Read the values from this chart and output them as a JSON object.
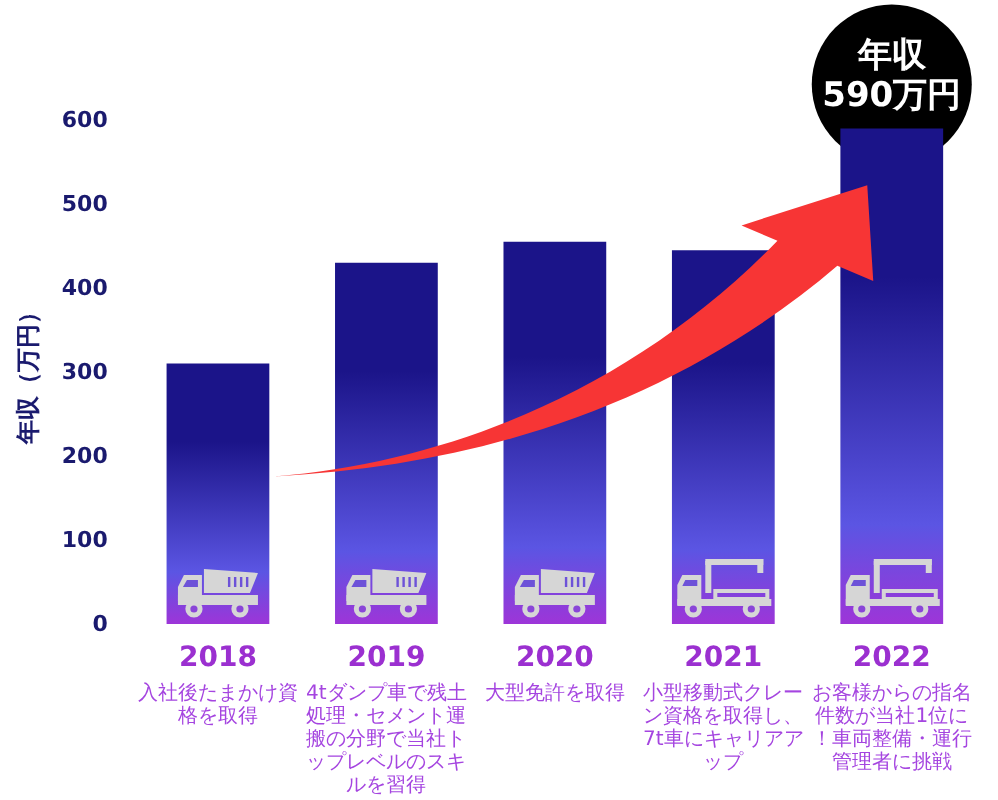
{
  "chart_data": {
    "type": "bar",
    "categories": [
      "2018",
      "2019",
      "2020",
      "2021",
      "2022"
    ],
    "values": [
      310,
      430,
      455,
      445,
      590
    ],
    "color": "#1b1489",
    "ylabel": "年収（万円）",
    "ylim": [
      0,
      600
    ],
    "yticks": [
      0,
      100,
      200,
      300,
      400,
      500,
      600
    ],
    "annotations": [
      {
        "text": "年収\n590万円",
        "x": "2022",
        "y": 590
      },
      "入社後たまかけ資格を取得",
      "4tダンプ車で残土処理・セメント運搬の分野で当社トップレベルのスキルを習得",
      "大型免許を取得",
      "小型移動式クレーン資格を取得し、7t車にキャリアアップ",
      "お客様からの指名件数が当社1位に！車両整備・運行管理者に挑戦"
    ]
  }
}
